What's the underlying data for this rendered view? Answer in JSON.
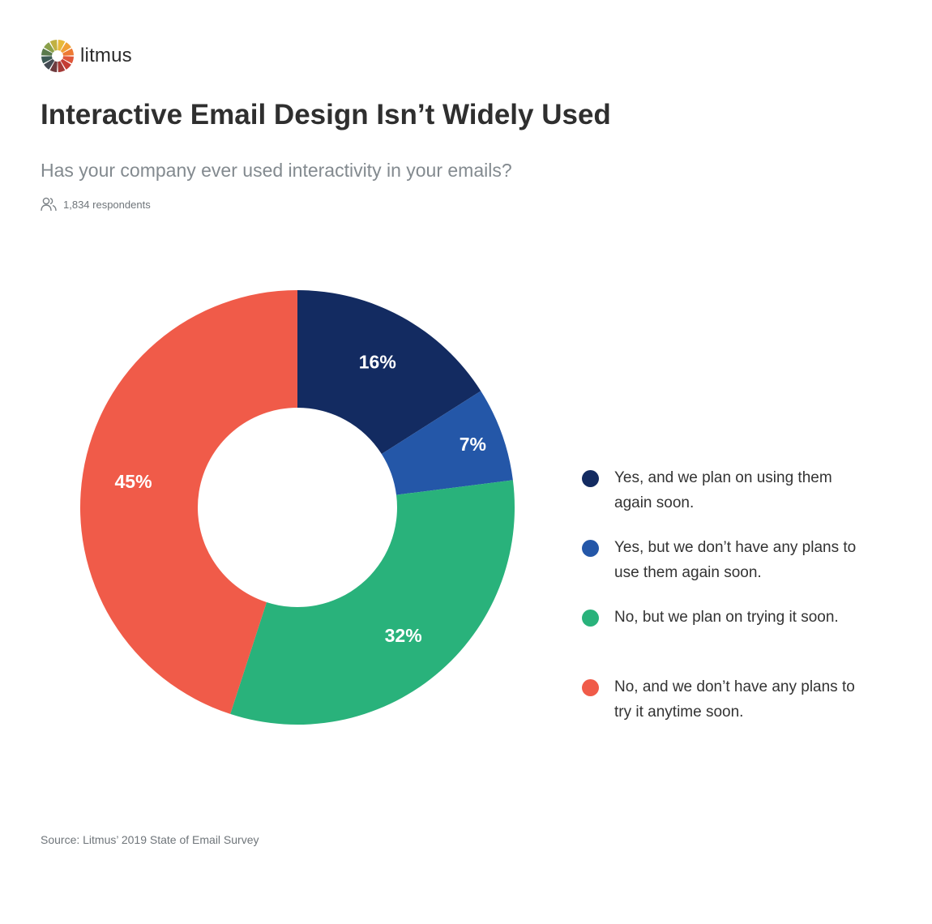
{
  "logo": {
    "text": "litmus"
  },
  "respondents_icon": "people-icon",
  "chart_data": {
    "type": "pie",
    "donut": true,
    "title": "Interactive Email Design Isn’t Widely Used",
    "subtitle": "Has your company ever used interactivity in your emails?",
    "respondents": "1,834 respondents",
    "categories": [
      "Yes, and we plan on using them again soon.",
      "Yes, but we don’t have any plans to use them again soon.",
      "No, but we plan on trying it soon.",
      "No, and we don’t have any plans to try it anytime soon."
    ],
    "values": [
      16,
      7,
      32,
      45
    ],
    "data_labels": [
      "16%",
      "7%",
      "32%",
      "45%"
    ],
    "colors": [
      "#132b61",
      "#2457a8",
      "#29b27b",
      "#f05b49"
    ],
    "legend_position": "right",
    "source": "Source: Litmus’ 2019 State of Email Survey"
  }
}
